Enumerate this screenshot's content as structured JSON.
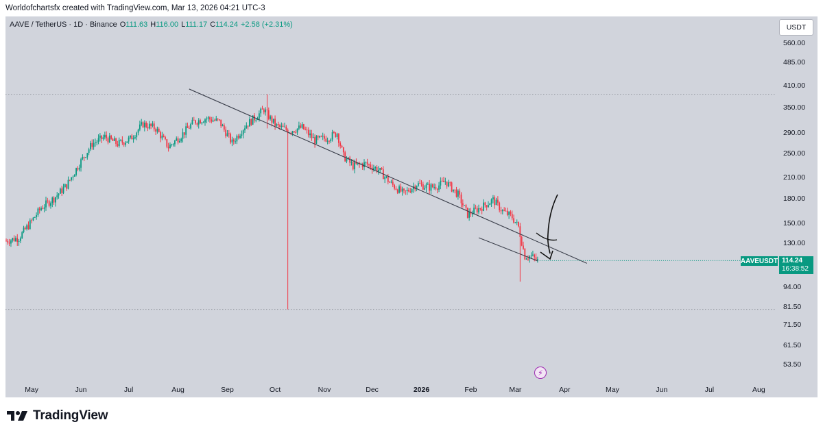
{
  "header": {
    "caption": "Worldofchartsfx created with TradingView.com, Mar 13, 2026 04:21 UTC-3"
  },
  "legend": {
    "symbol": "AAVE / TetherUS · 1D · Binance",
    "open_label": "O",
    "open": "111.63",
    "high_label": "H",
    "high": "116.00",
    "low_label": "L",
    "low": "111.17",
    "close_label": "C",
    "close": "114.24",
    "change": "+2.58 (+2.31%)"
  },
  "currency_button": "USDT",
  "price_badge": {
    "symbol": "AAVEUSDT",
    "price": "114.24",
    "countdown": "16:38:52"
  },
  "footer": {
    "brand": "TradingView"
  },
  "colors": {
    "up": "#089981",
    "down": "#f23645",
    "panel": "#d1d4dc",
    "accent": "#9c27b0"
  },
  "icons": {
    "logo": "tradingview-logo-icon",
    "alert": "lightning-icon"
  },
  "chart_data": {
    "type": "candlestick",
    "title": "AAVE / TetherUS · 1D · Binance",
    "scale": "log",
    "ylim": [
      50,
      620
    ],
    "y_ticks": [
      "560.00",
      "485.00",
      "410.00",
      "350.00",
      "290.00",
      "250.00",
      "210.00",
      "180.00",
      "150.00",
      "130.00",
      "94.00",
      "81.50",
      "71.50",
      "61.50",
      "53.50"
    ],
    "x_ticks": [
      "May",
      "Jun",
      "Jul",
      "Aug",
      "Sep",
      "Oct",
      "Nov",
      "Dec",
      "2026",
      "Feb",
      "Mar",
      "Apr",
      "May",
      "Jun",
      "Jul",
      "Aug"
    ],
    "x_start": "2025-04-15",
    "candles_daily": 335,
    "path_close": [
      [
        0,
        132
      ],
      [
        8,
        135
      ],
      [
        15,
        150
      ],
      [
        22,
        168
      ],
      [
        30,
        180
      ],
      [
        38,
        198
      ],
      [
        46,
        232
      ],
      [
        54,
        268
      ],
      [
        62,
        282
      ],
      [
        70,
        268
      ],
      [
        78,
        278
      ],
      [
        86,
        310
      ],
      [
        94,
        300
      ],
      [
        102,
        262
      ],
      [
        110,
        285
      ],
      [
        118,
        315
      ],
      [
        126,
        323
      ],
      [
        134,
        315
      ],
      [
        142,
        270
      ],
      [
        150,
        305
      ],
      [
        158,
        330
      ],
      [
        162,
        345
      ],
      [
        166,
        322
      ],
      [
        170,
        305
      ],
      [
        178,
        295
      ],
      [
        186,
        302
      ],
      [
        194,
        275
      ],
      [
        202,
        280
      ],
      [
        208,
        290
      ],
      [
        212,
        245
      ],
      [
        218,
        228
      ],
      [
        226,
        232
      ],
      [
        234,
        222
      ],
      [
        242,
        200
      ],
      [
        250,
        186
      ],
      [
        258,
        200
      ],
      [
        266,
        195
      ],
      [
        272,
        198
      ],
      [
        276,
        204
      ],
      [
        284,
        185
      ],
      [
        290,
        160
      ],
      [
        298,
        168
      ],
      [
        306,
        178
      ],
      [
        312,
        164
      ],
      [
        318,
        157
      ],
      [
        322,
        146
      ],
      [
        326,
        118
      ],
      [
        330,
        118
      ],
      [
        334,
        114.24
      ]
    ],
    "dotted_levels": [
      385,
      80
    ],
    "wick_events": [
      {
        "day": 177,
        "high": 298,
        "low": 80
      },
      {
        "day": 164,
        "high": 385,
        "low": 300
      },
      {
        "day": 323,
        "high": 132,
        "low": 98
      }
    ],
    "trendlines": [
      {
        "from": [
          "2025-08-08",
          400
        ],
        "to": [
          "2026-04-15",
          112
        ]
      },
      {
        "from": [
          "2026-02-06",
          135
        ],
        "to": [
          "2026-03-15",
          114
        ]
      }
    ],
    "last_price": 114.24
  }
}
